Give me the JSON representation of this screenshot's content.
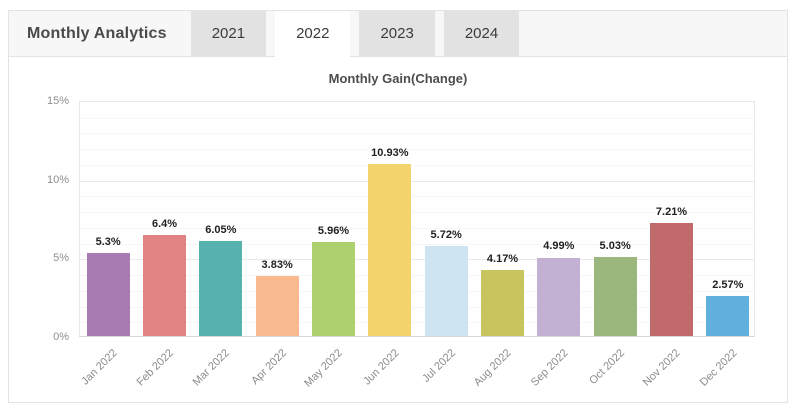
{
  "widget": {
    "title": "Monthly Analytics",
    "tabs": [
      {
        "label": "2021",
        "active": false
      },
      {
        "label": "2022",
        "active": true
      },
      {
        "label": "2023",
        "active": false
      },
      {
        "label": "2024",
        "active": false
      }
    ]
  },
  "chart_data": {
    "type": "bar",
    "title": "Monthly Gain(Change)",
    "categories": [
      "Jan 2022",
      "Feb 2022",
      "Mar 2022",
      "Apr 2022",
      "May 2022",
      "Jun 2022",
      "Jul 2022",
      "Aug 2022",
      "Sep 2022",
      "Oct 2022",
      "Nov 2022",
      "Dec 2022"
    ],
    "values": [
      5.3,
      6.4,
      6.05,
      3.83,
      5.96,
      10.93,
      5.72,
      4.17,
      4.99,
      5.03,
      7.21,
      2.57
    ],
    "value_labels": [
      "5.3%",
      "6.4%",
      "6.05%",
      "3.83%",
      "5.96%",
      "10.93%",
      "5.72%",
      "4.17%",
      "4.99%",
      "5.03%",
      "7.21%",
      "2.57%"
    ],
    "bar_colors": [
      "#a87cb2",
      "#e28383",
      "#57b2ae",
      "#f8b98e",
      "#aed06d",
      "#f3d36b",
      "#cfe4f3",
      "#c9c55e",
      "#c2b1d3",
      "#9bb77d",
      "#c16a6c",
      "#5fb0dd"
    ],
    "xlabel": "",
    "ylabel": "",
    "ylim": [
      0,
      15
    ],
    "ytick_step_major": 5,
    "ytick_step_minor": 1,
    "yticks": [
      {
        "value": 0,
        "label": "0%"
      },
      {
        "value": 5,
        "label": "5%"
      },
      {
        "value": 10,
        "label": "10%"
      },
      {
        "value": 15,
        "label": "15%"
      }
    ],
    "grid": true,
    "legend": false
  },
  "colors": {
    "panel_border": "#e3e3e3",
    "header_bg": "#f7f7f7",
    "tab_inactive_bg": "#e2e2e2",
    "tab_active_bg": "#ffffff",
    "grid_major": "#eaeaea",
    "grid_minor": "#f6f6f6",
    "axis_text": "#8f8f8f",
    "value_text": "#222222"
  }
}
